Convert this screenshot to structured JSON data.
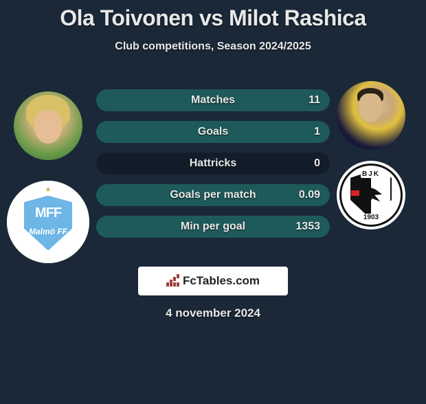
{
  "header": {
    "title": "Ola Toivonen vs Milot Rashica",
    "subtitle": "Club competitions, Season 2024/2025"
  },
  "players": {
    "left": {
      "name": "Ola Toivonen",
      "club": "Malmö FF",
      "club_abbrev": "MFF",
      "club_shield_color": "#6db6e6",
      "club_text_color": "#ffffff"
    },
    "right": {
      "name": "Milot Rashica",
      "club": "Beşiktaş",
      "club_abbrev": "BJK",
      "club_year": "1903",
      "club_primary": "#111111",
      "club_secondary": "#ffffff",
      "club_accent": "#d8232a"
    }
  },
  "stats": [
    {
      "label": "Matches",
      "value": "11",
      "fill_pct": 100
    },
    {
      "label": "Goals",
      "value": "1",
      "fill_pct": 100
    },
    {
      "label": "Hattricks",
      "value": "0",
      "fill_pct": 0
    },
    {
      "label": "Goals per match",
      "value": "0.09",
      "fill_pct": 100
    },
    {
      "label": "Min per goal",
      "value": "1353",
      "fill_pct": 100
    }
  ],
  "branding": {
    "site_name": "FcTables.com",
    "date": "4 november 2024"
  },
  "colors": {
    "page_bg": "#1a2838",
    "pill_bg": "#121d29",
    "pill_fill": "#1f5a5a",
    "text": "#e8e8e8",
    "brand_box_bg": "#ffffff",
    "brand_text": "#222222"
  }
}
